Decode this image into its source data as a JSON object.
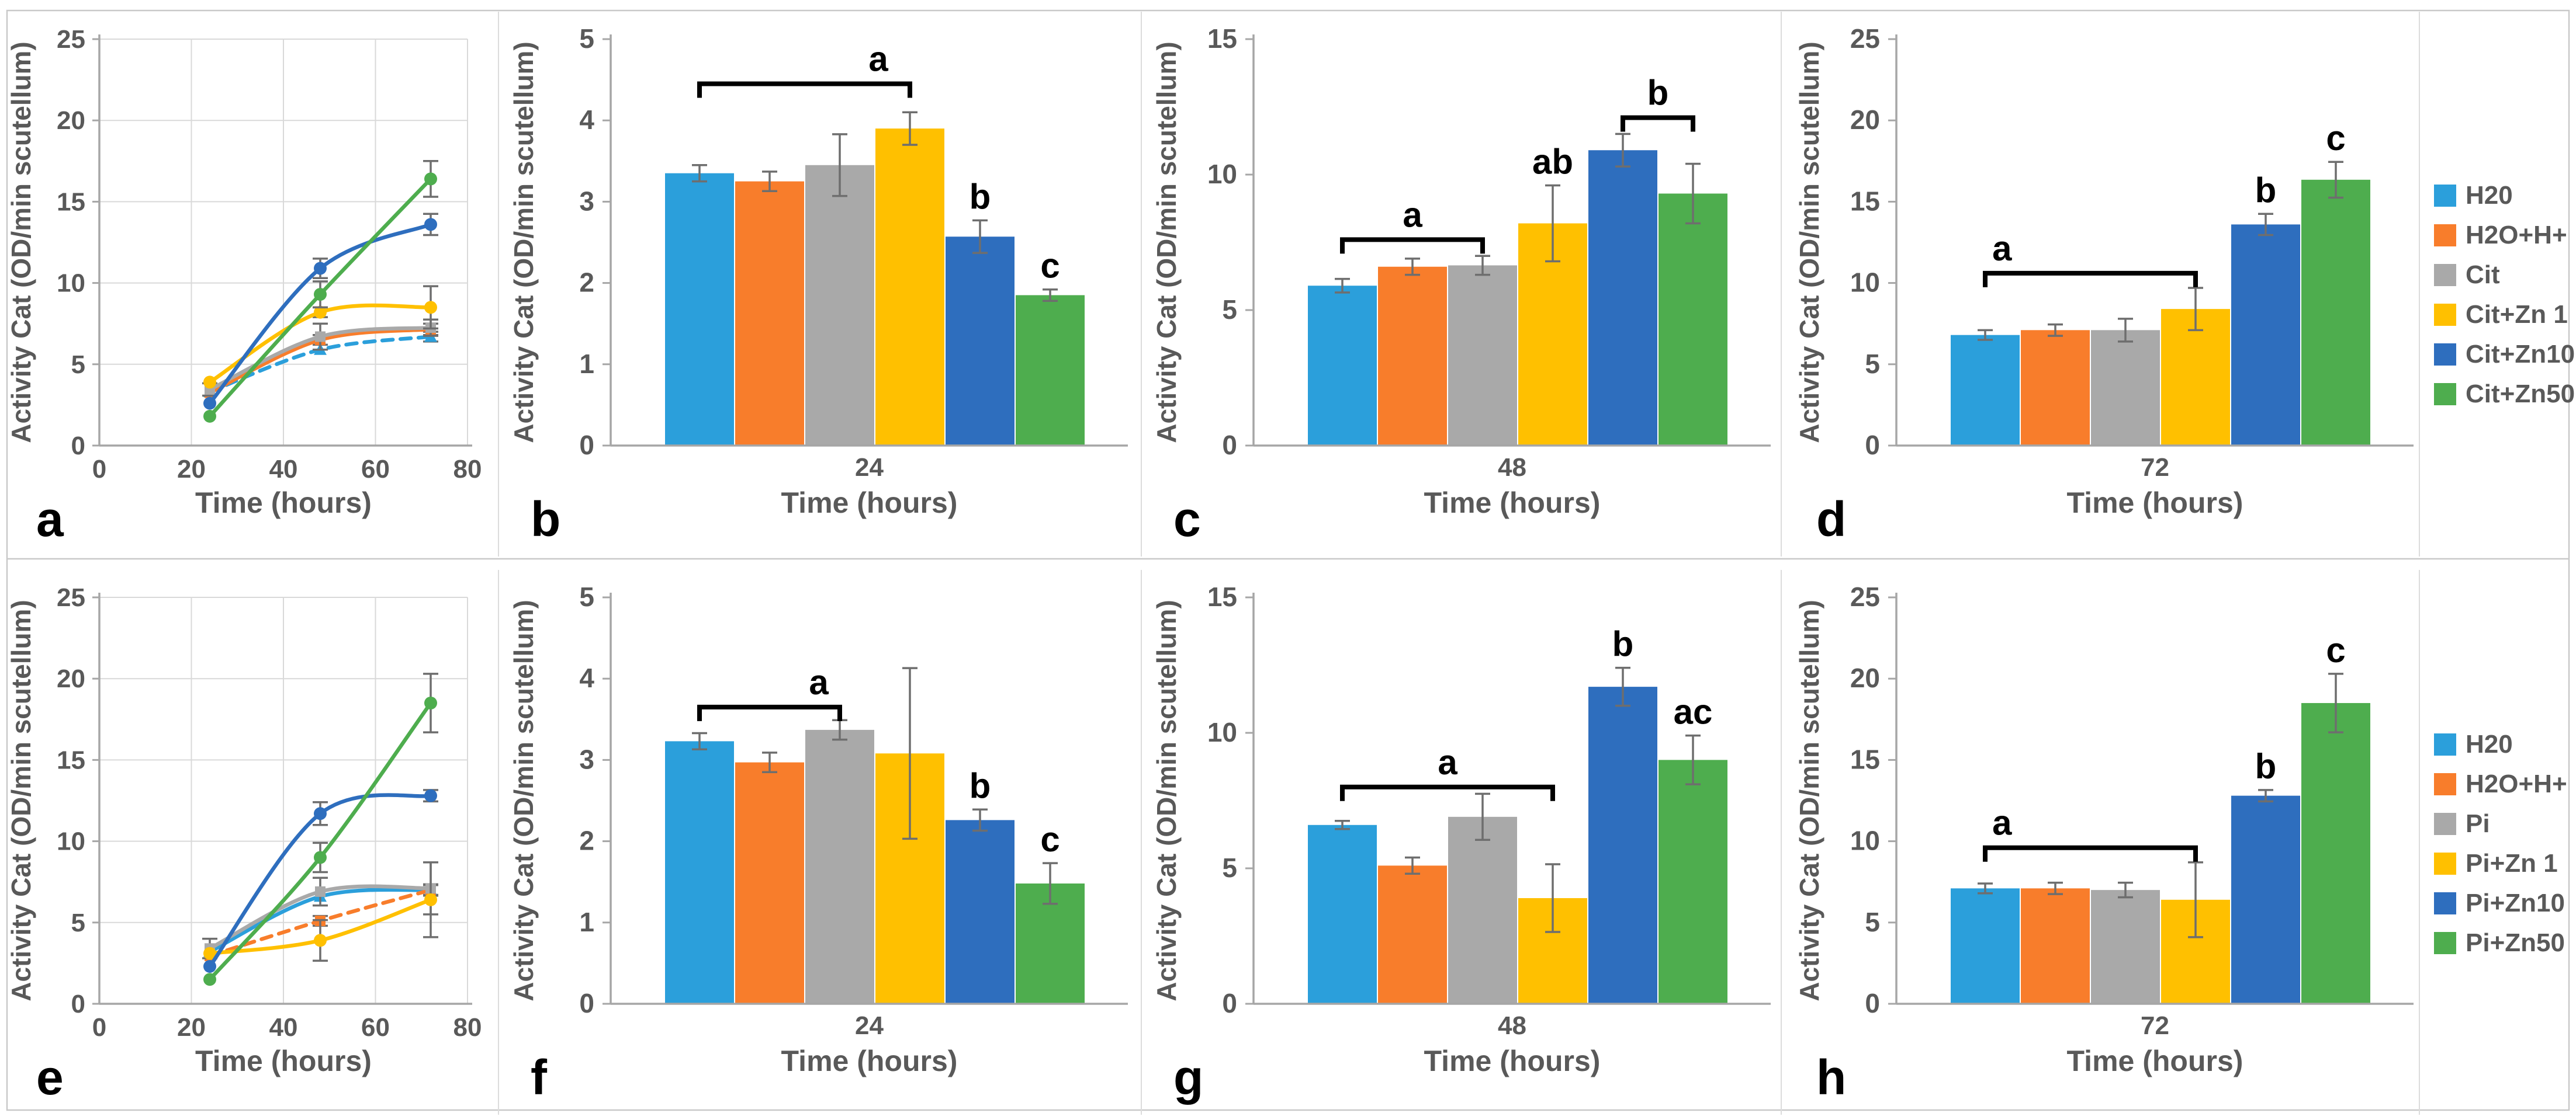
{
  "figure": {
    "description": "Catalase activity multi-panel figure",
    "ylabel": "Activity Cat (OD/min scutellum)",
    "xlabel": "Time (hours)",
    "panel_letters": [
      "a",
      "b",
      "c",
      "d",
      "e",
      "f",
      "g",
      "h"
    ]
  },
  "palette": {
    "h2o": "#2B9FDB",
    "h2oh": "#F87D2B",
    "neutral": "#A9A9A9",
    "zn1": "#FFC000",
    "zn10": "#2E6EBE",
    "zn50": "#4EAD4E"
  },
  "style_colors": {
    "axis": "#A6A6A6",
    "grid": "#D9D9D9",
    "text": "#595959",
    "error": "#6E6E6E",
    "annotation": "#000000",
    "panel_border": "#C9C9C9"
  },
  "chart_data": [
    {
      "id": "a",
      "type": "line",
      "row": 0,
      "col": 0,
      "letter": "a",
      "xlabel": "Time (hours)",
      "ylabel": "Activity Cat (OD/min scutellum)",
      "xlim": [
        0,
        80
      ],
      "xticks": [
        0,
        20,
        40,
        60,
        80
      ],
      "ylim": [
        0,
        25
      ],
      "yticks": [
        0,
        5,
        10,
        15,
        20,
        25
      ],
      "x": [
        24,
        48,
        72
      ],
      "grid": true,
      "series": [
        {
          "name": "H20",
          "color_key": "h2o",
          "dash": true,
          "marker": "triangle",
          "values": [
            3.3,
            5.9,
            6.7
          ],
          "errors": [
            0.1,
            0.25,
            0.3
          ]
        },
        {
          "name": "H2O+H+",
          "color_key": "h2oh",
          "dash": false,
          "marker": "square",
          "values": [
            3.25,
            6.5,
            7.15
          ],
          "errors": [
            0.12,
            0.3,
            0.35
          ]
        },
        {
          "name": "Cit",
          "color_key": "neutral",
          "dash": false,
          "marker": "square",
          "values": [
            3.45,
            6.7,
            7.25
          ],
          "errors": [
            0.38,
            0.8,
            0.5
          ]
        },
        {
          "name": "Cit+Zn 1",
          "color_key": "zn1",
          "dash": false,
          "marker": "circle",
          "values": [
            3.9,
            8.2,
            8.5
          ],
          "errors": [
            0.2,
            0.3,
            1.3
          ]
        },
        {
          "name": "Cit+Zn10",
          "color_key": "zn10",
          "dash": false,
          "marker": "circle",
          "values": [
            2.6,
            10.9,
            13.6
          ],
          "errors": [
            0.2,
            0.6,
            0.65
          ]
        },
        {
          "name": "Cit+Zn50",
          "color_key": "zn50",
          "dash": false,
          "marker": "circle",
          "values": [
            1.8,
            9.3,
            16.4
          ],
          "errors": [
            0.15,
            0.8,
            1.1
          ]
        }
      ]
    },
    {
      "id": "b",
      "type": "bar",
      "row": 0,
      "col": 1,
      "letter": "b",
      "xlabel": "Time (hours)",
      "ylabel": "Activity Cat (OD/min scutellum)",
      "category": "24",
      "ylim": [
        0,
        5
      ],
      "yticks": [
        0,
        1,
        2,
        3,
        4,
        5
      ],
      "bars": [
        {
          "name": "H20",
          "color_key": "h2o",
          "value": 3.35,
          "error": 0.1,
          "note": ""
        },
        {
          "name": "H2O+H+",
          "color_key": "h2oh",
          "value": 3.25,
          "error": 0.12,
          "note": ""
        },
        {
          "name": "Cit",
          "color_key": "neutral",
          "value": 3.45,
          "error": 0.38,
          "note": ""
        },
        {
          "name": "Cit+Zn 1",
          "color_key": "zn1",
          "value": 3.9,
          "error": 0.2,
          "note": ""
        },
        {
          "name": "Cit+Zn10",
          "color_key": "zn10",
          "value": 2.57,
          "error": 0.2,
          "note": "b"
        },
        {
          "name": "Cit+Zn50",
          "color_key": "zn50",
          "value": 1.85,
          "error": 0.07,
          "note": "c"
        }
      ],
      "brackets": [
        {
          "from": 0,
          "to": 3,
          "y": 4.45,
          "label": "a",
          "label_pos": 0.85
        }
      ]
    },
    {
      "id": "c",
      "type": "bar",
      "row": 0,
      "col": 2,
      "letter": "c",
      "xlabel": "Time (hours)",
      "ylabel": "Activity Cat (OD/min scutellum)",
      "category": "48",
      "ylim": [
        0,
        15
      ],
      "yticks": [
        0,
        5,
        10,
        15
      ],
      "bars": [
        {
          "name": "H20",
          "color_key": "h2o",
          "value": 5.9,
          "error": 0.25,
          "note": ""
        },
        {
          "name": "H2O+H+",
          "color_key": "h2oh",
          "value": 6.6,
          "error": 0.3,
          "note": ""
        },
        {
          "name": "Cit",
          "color_key": "neutral",
          "value": 6.65,
          "error": 0.35,
          "note": ""
        },
        {
          "name": "Cit+Zn 1",
          "color_key": "zn1",
          "value": 8.2,
          "error": 1.4,
          "note": "ab"
        },
        {
          "name": "Cit+Zn10",
          "color_key": "zn10",
          "value": 10.9,
          "error": 0.6,
          "note": ""
        },
        {
          "name": "Cit+Zn50",
          "color_key": "zn50",
          "value": 9.3,
          "error": 1.1,
          "note": ""
        }
      ],
      "brackets": [
        {
          "from": 0,
          "to": 2,
          "y": 7.6,
          "label": "a",
          "label_pos": 0.5
        },
        {
          "from": 4,
          "to": 5,
          "y": 12.1,
          "label": "b",
          "label_pos": 0.5
        }
      ]
    },
    {
      "id": "d",
      "type": "bar",
      "row": 0,
      "col": 3,
      "letter": "d",
      "xlabel": "Time (hours)",
      "ylabel": "Activity Cat (OD/min scutellum)",
      "category": "72",
      "ylim": [
        0,
        25
      ],
      "yticks": [
        0,
        5,
        10,
        15,
        20,
        25
      ],
      "bars": [
        {
          "name": "H20",
          "color_key": "h2o",
          "value": 6.8,
          "error": 0.3,
          "note": ""
        },
        {
          "name": "H2O+H+",
          "color_key": "h2oh",
          "value": 7.1,
          "error": 0.35,
          "note": ""
        },
        {
          "name": "Cit",
          "color_key": "neutral",
          "value": 7.1,
          "error": 0.7,
          "note": ""
        },
        {
          "name": "Cit+Zn 1",
          "color_key": "zn1",
          "value": 8.4,
          "error": 1.3,
          "note": ""
        },
        {
          "name": "Cit+Zn10",
          "color_key": "zn10",
          "value": 13.6,
          "error": 0.65,
          "note": "b"
        },
        {
          "name": "Cit+Zn50",
          "color_key": "zn50",
          "value": 16.35,
          "error": 1.1,
          "note": "c"
        }
      ],
      "brackets": [
        {
          "from": 0,
          "to": 3,
          "y": 10.6,
          "label": "a",
          "label_pos": 0.08
        }
      ]
    },
    {
      "id": "e",
      "type": "line",
      "row": 1,
      "col": 0,
      "letter": "e",
      "xlabel": "Time (hours)",
      "ylabel": "Activity Cat (OD/min scutellum)",
      "xlim": [
        0,
        80
      ],
      "xticks": [
        0,
        20,
        40,
        60,
        80
      ],
      "ylim": [
        0,
        25
      ],
      "yticks": [
        0,
        5,
        10,
        15,
        20,
        25
      ],
      "x": [
        24,
        48,
        72
      ],
      "grid": true,
      "series": [
        {
          "name": "H20",
          "color_key": "h2o",
          "dash": false,
          "marker": "triangle",
          "values": [
            3.2,
            6.6,
            7.0
          ],
          "errors": [
            0.2,
            0.15,
            0.3
          ]
        },
        {
          "name": "H2O+H+",
          "color_key": "h2oh",
          "dash": true,
          "marker": "square",
          "values": [
            2.95,
            5.1,
            7.0
          ],
          "errors": [
            0.12,
            0.3,
            0.35
          ]
        },
        {
          "name": "Pi",
          "color_key": "neutral",
          "dash": false,
          "marker": "square",
          "values": [
            3.4,
            6.9,
            7.1
          ],
          "errors": [
            0.6,
            0.85,
            1.6
          ]
        },
        {
          "name": "Pi+Zn 1",
          "color_key": "zn1",
          "dash": false,
          "marker": "circle",
          "values": [
            3.1,
            3.9,
            6.4
          ],
          "errors": [
            0.15,
            1.25,
            2.3
          ]
        },
        {
          "name": "Pi+Zn10",
          "color_key": "zn10",
          "dash": false,
          "marker": "circle",
          "values": [
            2.3,
            11.7,
            12.8
          ],
          "errors": [
            0.2,
            0.7,
            0.35
          ]
        },
        {
          "name": "Pi+Zn50",
          "color_key": "zn50",
          "dash": false,
          "marker": "circle",
          "values": [
            1.5,
            9.0,
            18.5
          ],
          "errors": [
            0.2,
            0.9,
            1.8
          ]
        }
      ]
    },
    {
      "id": "f",
      "type": "bar",
      "row": 1,
      "col": 1,
      "letter": "f",
      "xlabel": "Time (hours)",
      "ylabel": "Activity Cat (OD/min scutellum)",
      "category": "24",
      "ylim": [
        0,
        5
      ],
      "yticks": [
        0,
        1,
        2,
        3,
        4,
        5
      ],
      "bars": [
        {
          "name": "H20",
          "color_key": "h2o",
          "value": 3.23,
          "error": 0.1,
          "note": ""
        },
        {
          "name": "H2O+H+",
          "color_key": "h2oh",
          "value": 2.97,
          "error": 0.12,
          "note": ""
        },
        {
          "name": "Pi",
          "color_key": "neutral",
          "value": 3.37,
          "error": 0.12,
          "note": ""
        },
        {
          "name": "Pi+Zn 1",
          "color_key": "zn1",
          "value": 3.08,
          "error": 1.05,
          "note": ""
        },
        {
          "name": "Pi+Zn10",
          "color_key": "zn10",
          "value": 2.26,
          "error": 0.13,
          "note": "b"
        },
        {
          "name": "Pi+Zn50",
          "color_key": "zn50",
          "value": 1.48,
          "error": 0.25,
          "note": "c"
        }
      ],
      "brackets": [
        {
          "from": 0,
          "to": 2,
          "y": 3.65,
          "label": "a",
          "label_pos": 0.85
        }
      ]
    },
    {
      "id": "g",
      "type": "bar",
      "row": 1,
      "col": 2,
      "letter": "g",
      "xlabel": "Time (hours)",
      "ylabel": "Activity Cat (OD/min scutellum)",
      "category": "48",
      "ylim": [
        0,
        15
      ],
      "yticks": [
        0,
        5,
        10,
        15
      ],
      "bars": [
        {
          "name": "H20",
          "color_key": "h2o",
          "value": 6.6,
          "error": 0.15,
          "note": ""
        },
        {
          "name": "H2O+H+",
          "color_key": "h2oh",
          "value": 5.1,
          "error": 0.3,
          "note": ""
        },
        {
          "name": "Pi",
          "color_key": "neutral",
          "value": 6.9,
          "error": 0.85,
          "note": ""
        },
        {
          "name": "Pi+Zn 1",
          "color_key": "zn1",
          "value": 3.9,
          "error": 1.25,
          "note": ""
        },
        {
          "name": "Pi+Zn10",
          "color_key": "zn10",
          "value": 11.7,
          "error": 0.7,
          "note": "b"
        },
        {
          "name": "Pi+Zn50",
          "color_key": "zn50",
          "value": 9.0,
          "error": 0.9,
          "note": "ac"
        }
      ],
      "brackets": [
        {
          "from": 0,
          "to": 3,
          "y": 8.0,
          "label": "a",
          "label_pos": 0.5
        }
      ]
    },
    {
      "id": "h",
      "type": "bar",
      "row": 1,
      "col": 3,
      "letter": "h",
      "xlabel": "Time (hours)",
      "ylabel": "Activity Cat (OD/min scutellum)",
      "category": "72",
      "ylim": [
        0,
        25
      ],
      "yticks": [
        0,
        5,
        10,
        15,
        20,
        25
      ],
      "bars": [
        {
          "name": "H20",
          "color_key": "h2o",
          "value": 7.1,
          "error": 0.3,
          "note": ""
        },
        {
          "name": "H2O+H+",
          "color_key": "h2oh",
          "value": 7.1,
          "error": 0.35,
          "note": ""
        },
        {
          "name": "Pi",
          "color_key": "neutral",
          "value": 7.0,
          "error": 0.45,
          "note": ""
        },
        {
          "name": "Pi+Zn 1",
          "color_key": "zn1",
          "value": 6.4,
          "error": 2.3,
          "note": ""
        },
        {
          "name": "Pi+Zn10",
          "color_key": "zn10",
          "value": 12.8,
          "error": 0.35,
          "note": "b"
        },
        {
          "name": "Pi+Zn50",
          "color_key": "zn50",
          "value": 18.5,
          "error": 1.8,
          "note": "c"
        }
      ],
      "brackets": [
        {
          "from": 0,
          "to": 3,
          "y": 9.6,
          "label": "a",
          "label_pos": 0.08
        }
      ]
    },
    {
      "id": "legend-top",
      "type": "legend",
      "row": 0,
      "x": 4165,
      "y": 316,
      "items": [
        {
          "label": "H20",
          "color_key": "h2o"
        },
        {
          "label": "H2O+H+",
          "color_key": "h2oh"
        },
        {
          "label": "Cit",
          "color_key": "neutral"
        },
        {
          "label": "Cit+Zn 1",
          "color_key": "zn1"
        },
        {
          "label": "Cit+Zn10",
          "color_key": "zn10"
        },
        {
          "label": "Cit+Zn50",
          "color_key": "zn50"
        }
      ]
    },
    {
      "id": "legend-bottom",
      "type": "legend",
      "row": 1,
      "x": 4165,
      "y": 1256,
      "items": [
        {
          "label": "H20",
          "color_key": "h2o"
        },
        {
          "label": "H2O+H+",
          "color_key": "h2oh"
        },
        {
          "label": "Pi",
          "color_key": "neutral"
        },
        {
          "label": "Pi+Zn 1",
          "color_key": "zn1"
        },
        {
          "label": "Pi+Zn10",
          "color_key": "zn10"
        },
        {
          "label": "Pi+Zn50",
          "color_key": "zn50"
        }
      ]
    }
  ]
}
